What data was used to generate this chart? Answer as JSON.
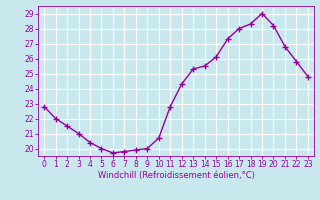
{
  "x": [
    0,
    1,
    2,
    3,
    4,
    5,
    6,
    7,
    8,
    9,
    10,
    11,
    12,
    13,
    14,
    15,
    16,
    17,
    18,
    19,
    20,
    21,
    22,
    23
  ],
  "y": [
    22.8,
    22.0,
    21.5,
    21.0,
    20.4,
    20.0,
    19.7,
    19.8,
    19.9,
    20.0,
    20.7,
    22.8,
    24.3,
    25.3,
    25.5,
    26.1,
    27.3,
    28.0,
    28.3,
    29.0,
    28.2,
    26.8,
    25.8,
    24.8
  ],
  "color": "#990099",
  "bg_color": "#c8e8ee",
  "grid_color": "#b0d0d8",
  "xlabel": "Windchill (Refroidissement éolien,°C)",
  "ylim": [
    19.5,
    29.5
  ],
  "yticks": [
    20,
    21,
    22,
    23,
    24,
    25,
    26,
    27,
    28,
    29
  ],
  "xticks": [
    0,
    1,
    2,
    3,
    4,
    5,
    6,
    7,
    8,
    9,
    10,
    11,
    12,
    13,
    14,
    15,
    16,
    17,
    18,
    19,
    20,
    21,
    22,
    23
  ],
  "marker": "+",
  "markersize": 4,
  "linewidth": 1.0,
  "tick_fontsize": 5.5,
  "xlabel_fontsize": 6.0
}
